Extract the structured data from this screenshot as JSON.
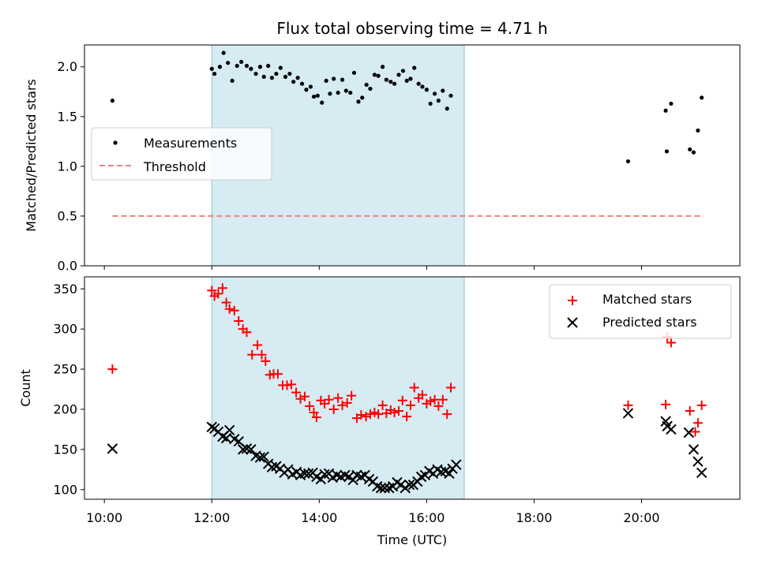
{
  "title": "Flux total observing time = 4.71 h",
  "chart_data": [
    {
      "type": "scatter",
      "ylabel": "Matched/Predicted stars",
      "ylim": [
        0,
        2.22
      ],
      "yticks": [
        0.0,
        0.5,
        1.0,
        1.5,
        2.0
      ],
      "ytick_labels": [
        "0.0",
        "0.5",
        "1.0",
        "1.5",
        "2.0"
      ],
      "xlim": [
        9.63,
        21.83
      ],
      "highlight_span": [
        12.0,
        16.7
      ],
      "highlight_color": "#add8e6",
      "legend": {
        "position": "center-left",
        "entries": [
          {
            "label": "Measurements",
            "marker": "dot",
            "color": "#000000"
          },
          {
            "label": "Threshold",
            "marker": "dashed-line",
            "color": "#f08080"
          }
        ]
      },
      "threshold": {
        "y": 0.5,
        "x": [
          10.15,
          21.15
        ]
      },
      "series": [
        {
          "marker": "dot",
          "color": "#000000",
          "points": [
            [
              10.15,
              1.66
            ],
            [
              12.0,
              1.98
            ],
            [
              12.05,
              1.93
            ],
            [
              12.15,
              2.0
            ],
            [
              12.22,
              2.14
            ],
            [
              12.3,
              2.04
            ],
            [
              12.38,
              1.86
            ],
            [
              12.47,
              2.01
            ],
            [
              12.55,
              2.05
            ],
            [
              12.65,
              2.01
            ],
            [
              12.73,
              1.98
            ],
            [
              12.82,
              1.93
            ],
            [
              12.9,
              2.0
            ],
            [
              12.97,
              1.9
            ],
            [
              13.05,
              2.01
            ],
            [
              13.12,
              1.89
            ],
            [
              13.2,
              1.93
            ],
            [
              13.28,
              1.99
            ],
            [
              13.37,
              1.9
            ],
            [
              13.45,
              1.93
            ],
            [
              13.52,
              1.85
            ],
            [
              13.6,
              1.89
            ],
            [
              13.68,
              1.83
            ],
            [
              13.76,
              1.77
            ],
            [
              13.84,
              1.8
            ],
            [
              13.9,
              1.7
            ],
            [
              13.97,
              1.71
            ],
            [
              14.05,
              1.64
            ],
            [
              14.13,
              1.86
            ],
            [
              14.2,
              1.73
            ],
            [
              14.27,
              1.88
            ],
            [
              14.35,
              1.74
            ],
            [
              14.43,
              1.87
            ],
            [
              14.5,
              1.76
            ],
            [
              14.58,
              1.74
            ],
            [
              14.65,
              1.94
            ],
            [
              14.73,
              1.65
            ],
            [
              14.8,
              1.69
            ],
            [
              14.88,
              1.82
            ],
            [
              14.95,
              1.78
            ],
            [
              15.03,
              1.92
            ],
            [
              15.1,
              1.91
            ],
            [
              15.18,
              2.0
            ],
            [
              15.25,
              1.87
            ],
            [
              15.33,
              1.85
            ],
            [
              15.4,
              1.83
            ],
            [
              15.48,
              1.92
            ],
            [
              15.56,
              1.96
            ],
            [
              15.63,
              1.86
            ],
            [
              15.7,
              1.88
            ],
            [
              15.77,
              1.99
            ],
            [
              15.85,
              1.83
            ],
            [
              15.92,
              1.8
            ],
            [
              16.0,
              1.77
            ],
            [
              16.07,
              1.63
            ],
            [
              16.15,
              1.73
            ],
            [
              16.22,
              1.66
            ],
            [
              16.3,
              1.76
            ],
            [
              16.38,
              1.58
            ],
            [
              16.45,
              1.71
            ],
            [
              19.75,
              1.05
            ],
            [
              20.45,
              1.56
            ],
            [
              20.47,
              1.15
            ],
            [
              20.55,
              1.63
            ],
            [
              20.9,
              1.17
            ],
            [
              20.97,
              1.14
            ],
            [
              21.05,
              1.36
            ],
            [
              21.12,
              1.69
            ]
          ]
        }
      ]
    },
    {
      "type": "scatter",
      "ylabel": "Count",
      "xlabel": "Time (UTC)",
      "ylim": [
        88,
        365
      ],
      "yticks": [
        100,
        150,
        200,
        250,
        300,
        350
      ],
      "ytick_labels": [
        "100",
        "150",
        "200",
        "250",
        "300",
        "350"
      ],
      "xlim": [
        9.63,
        21.83
      ],
      "xticks": [
        10,
        12,
        14,
        16,
        18,
        20
      ],
      "xtick_labels": [
        "10:00",
        "12:00",
        "14:00",
        "16:00",
        "18:00",
        "20:00"
      ],
      "highlight_span": [
        12.0,
        16.7
      ],
      "highlight_color": "#add8e6",
      "legend": {
        "position": "top-right",
        "entries": [
          {
            "label": "Matched stars",
            "marker": "plus",
            "color": "#ff0000"
          },
          {
            "label": "Predicted stars",
            "marker": "x",
            "color": "#000000"
          }
        ]
      },
      "series": [
        {
          "marker": "plus",
          "color": "#ff0000",
          "points": [
            [
              10.15,
              250
            ],
            [
              12.0,
              348
            ],
            [
              12.05,
              341
            ],
            [
              12.12,
              344
            ],
            [
              12.2,
              351
            ],
            [
              12.27,
              333
            ],
            [
              12.33,
              325
            ],
            [
              12.42,
              323
            ],
            [
              12.5,
              310
            ],
            [
              12.58,
              300
            ],
            [
              12.65,
              296
            ],
            [
              12.75,
              268
            ],
            [
              12.85,
              280
            ],
            [
              12.93,
              268
            ],
            [
              13.0,
              260
            ],
            [
              13.08,
              243
            ],
            [
              13.15,
              244
            ],
            [
              13.23,
              244
            ],
            [
              13.32,
              230
            ],
            [
              13.4,
              230
            ],
            [
              13.48,
              231
            ],
            [
              13.57,
              221
            ],
            [
              13.65,
              213
            ],
            [
              13.73,
              216
            ],
            [
              13.82,
              204
            ],
            [
              13.9,
              196
            ],
            [
              13.95,
              190
            ],
            [
              14.03,
              211
            ],
            [
              14.1,
              207
            ],
            [
              14.18,
              212
            ],
            [
              14.27,
              200
            ],
            [
              14.35,
              214
            ],
            [
              14.43,
              205
            ],
            [
              14.52,
              208
            ],
            [
              14.6,
              217
            ],
            [
              14.7,
              189
            ],
            [
              14.78,
              193
            ],
            [
              14.87,
              191
            ],
            [
              14.95,
              194
            ],
            [
              15.03,
              196
            ],
            [
              15.1,
              194
            ],
            [
              15.18,
              205
            ],
            [
              15.25,
              195
            ],
            [
              15.33,
              199
            ],
            [
              15.4,
              196
            ],
            [
              15.48,
              198
            ],
            [
              15.55,
              211
            ],
            [
              15.63,
              191
            ],
            [
              15.7,
              205
            ],
            [
              15.77,
              227
            ],
            [
              15.85,
              214
            ],
            [
              15.92,
              218
            ],
            [
              16.0,
              207
            ],
            [
              16.07,
              210
            ],
            [
              16.15,
              212
            ],
            [
              16.22,
              204
            ],
            [
              16.3,
              212
            ],
            [
              16.38,
              194
            ],
            [
              16.45,
              227
            ],
            [
              19.75,
              205
            ],
            [
              20.45,
              206
            ],
            [
              20.48,
              290
            ],
            [
              20.55,
              283
            ],
            [
              20.9,
              198
            ],
            [
              21.0,
              172
            ],
            [
              21.05,
              183
            ],
            [
              21.12,
              205
            ]
          ]
        },
        {
          "marker": "x",
          "color": "#000000",
          "points": [
            [
              10.15,
              151
            ],
            [
              12.0,
              178
            ],
            [
              12.05,
              176
            ],
            [
              12.12,
              172
            ],
            [
              12.2,
              166
            ],
            [
              12.27,
              164
            ],
            [
              12.33,
              174
            ],
            [
              12.42,
              163
            ],
            [
              12.5,
              160
            ],
            [
              12.58,
              150
            ],
            [
              12.65,
              151
            ],
            [
              12.73,
              150
            ],
            [
              12.82,
              142
            ],
            [
              12.9,
              140
            ],
            [
              12.97,
              141
            ],
            [
              13.05,
              132
            ],
            [
              13.12,
              128
            ],
            [
              13.2,
              129
            ],
            [
              13.27,
              126
            ],
            [
              13.35,
              121
            ],
            [
              13.42,
              125
            ],
            [
              13.5,
              119
            ],
            [
              13.58,
              122
            ],
            [
              13.65,
              118
            ],
            [
              13.73,
              120
            ],
            [
              13.8,
              120
            ],
            [
              13.88,
              121
            ],
            [
              13.95,
              116
            ],
            [
              14.03,
              113
            ],
            [
              14.1,
              119
            ],
            [
              14.18,
              120
            ],
            [
              14.25,
              115
            ],
            [
              14.33,
              118
            ],
            [
              14.4,
              116
            ],
            [
              14.48,
              118
            ],
            [
              14.55,
              116
            ],
            [
              14.63,
              112
            ],
            [
              14.7,
              118
            ],
            [
              14.78,
              116
            ],
            [
              14.85,
              118
            ],
            [
              14.93,
              113
            ],
            [
              15.0,
              110
            ],
            [
              15.08,
              104
            ],
            [
              15.15,
              102
            ],
            [
              15.22,
              102
            ],
            [
              15.3,
              102
            ],
            [
              15.37,
              104
            ],
            [
              15.45,
              109
            ],
            [
              15.52,
              106
            ],
            [
              15.6,
              102
            ],
            [
              15.68,
              106
            ],
            [
              15.75,
              106
            ],
            [
              15.83,
              110
            ],
            [
              15.9,
              116
            ],
            [
              15.97,
              118
            ],
            [
              16.05,
              123
            ],
            [
              16.12,
              120
            ],
            [
              16.2,
              125
            ],
            [
              16.27,
              122
            ],
            [
              16.35,
              123
            ],
            [
              16.42,
              120
            ],
            [
              16.48,
              126
            ],
            [
              16.55,
              131
            ],
            [
              19.75,
              195
            ],
            [
              20.45,
              185
            ],
            [
              20.48,
              179
            ],
            [
              20.55,
              175
            ],
            [
              20.88,
              171
            ],
            [
              20.97,
              150
            ],
            [
              21.05,
              135
            ],
            [
              21.12,
              121
            ]
          ]
        }
      ]
    }
  ]
}
